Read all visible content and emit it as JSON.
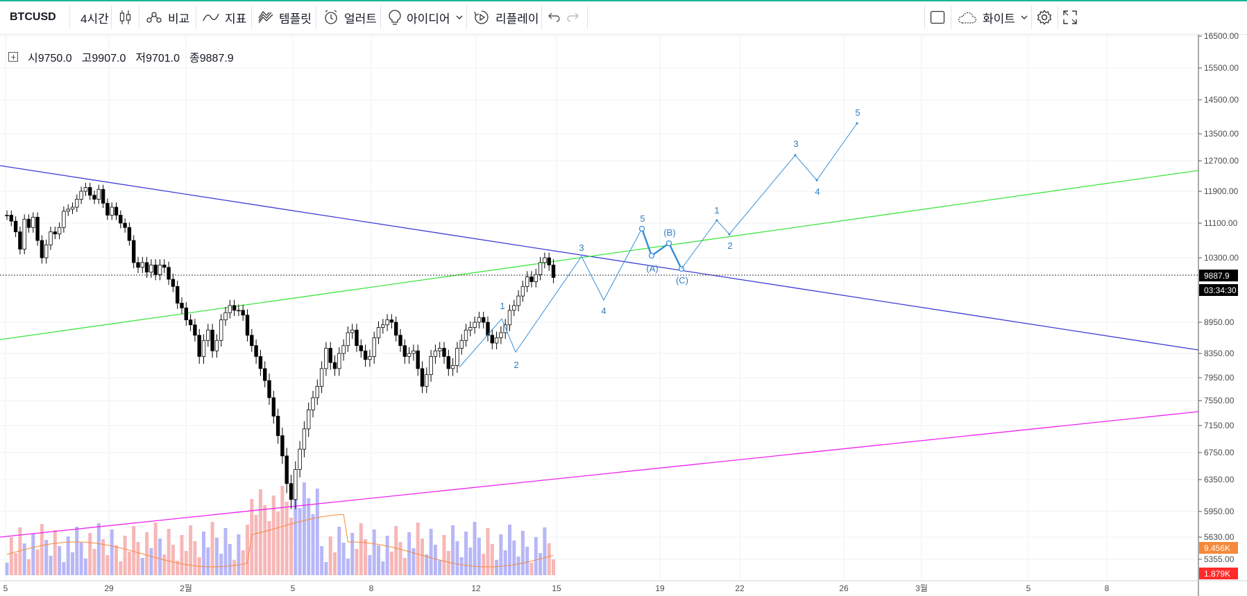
{
  "toolbar": {
    "symbol": "BTCUSD",
    "interval": "4시간",
    "compare": "비교",
    "indicators": "지표",
    "templates": "템플릿",
    "alert": "얼러트",
    "ideas": "아이디어",
    "replay": "리플레이",
    "theme": "화이트",
    "accent_color": "#1ab394"
  },
  "legend": {
    "open_label": "시",
    "open": "9750.0",
    "high_label": "고",
    "high": "9907.0",
    "low_label": "저",
    "low": "9701.0",
    "close_label": "종",
    "close": "9887.9"
  },
  "price_axis": {
    "ticks": [
      "16500.00",
      "15500.00",
      "14500.00",
      "13500.00",
      "12700.00",
      "11900.00",
      "11100.00",
      "10300.00",
      "8950.00",
      "8350.00",
      "7950.00",
      "7550.00",
      "7150.00",
      "6750.00",
      "6350.00",
      "5950.00",
      "5630.00",
      "5355.00"
    ],
    "last_price": "9887.9",
    "countdown": "03:34:30",
    "volume_ma": "9.456K",
    "volume_last": "1.879K"
  },
  "time_axis": {
    "ticks": [
      "5",
      "29",
      "2월",
      "5",
      "8",
      "12",
      "15",
      "19",
      "22",
      "26",
      "3월",
      "5",
      "8"
    ]
  },
  "waves": {
    "impulse_1": [
      "1",
      "2",
      "3",
      "4",
      "5"
    ],
    "correction": [
      "(A)",
      "(B)",
      "(C)"
    ],
    "impulse_2": [
      "1",
      "2",
      "3",
      "4",
      "5"
    ]
  },
  "colors": {
    "up_candle": "#ffffff",
    "down_candle": "#000000",
    "blue_trendline": "#3c3cd6",
    "green_trendline": "#3ee63e",
    "magenta_trendline": "#ee22ee",
    "wave_line": "#3a8fd6",
    "volume_up": "#b7b7f7",
    "volume_down": "#f7b7b7",
    "volume_ma": "#f5883a"
  },
  "icons": [
    "candles-icon",
    "compare-icon",
    "indicators-icon",
    "templates-icon",
    "alert-icon",
    "idea-bulb-icon",
    "replay-icon",
    "undo-icon",
    "redo-icon",
    "square-icon",
    "cloud-icon",
    "gear-icon",
    "fullscreen-icon"
  ]
}
